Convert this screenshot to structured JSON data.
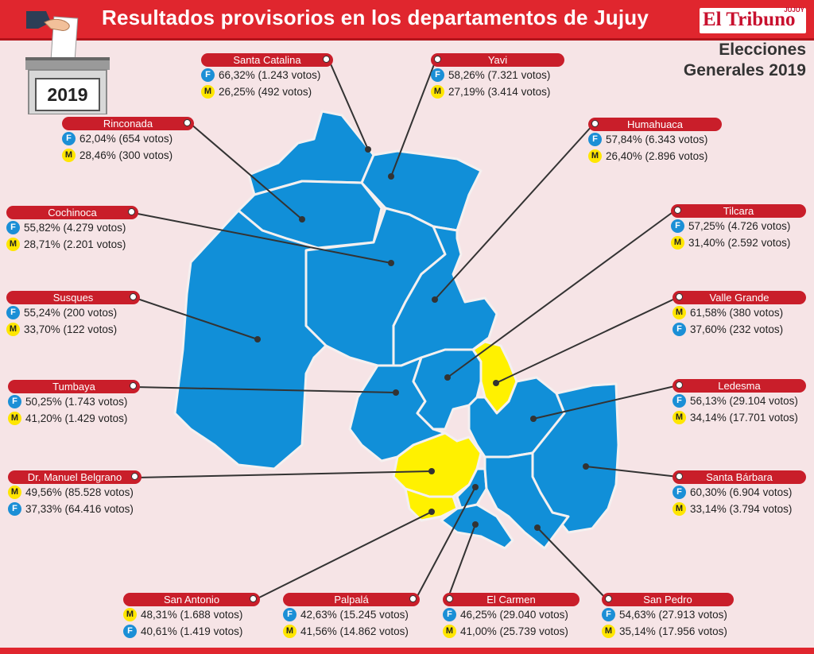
{
  "title": "Resultados provisorios en los departamentos de Jujuy",
  "logo": {
    "main": "El Tribuno",
    "sub": "JUJUY"
  },
  "election": {
    "line1": "Elecciones",
    "line2": "Generales 2019"
  },
  "year": "2019",
  "colors": {
    "F": "#1b8fd6",
    "M": "#ffe600",
    "header": "#e0262e",
    "label": "#c91e2a",
    "background": "#f6e4e6"
  },
  "departments": [
    {
      "name": "Santa Catalina",
      "rows": [
        {
          "p": "F",
          "t": "66,32% (1.243 votos)"
        },
        {
          "p": "M",
          "t": "26,25% (492 votos)"
        }
      ]
    },
    {
      "name": "Yavi",
      "rows": [
        {
          "p": "F",
          "t": "58,26% (7.321 votos)"
        },
        {
          "p": "M",
          "t": "27,19% (3.414 votos)"
        }
      ]
    },
    {
      "name": "Rinconada",
      "rows": [
        {
          "p": "F",
          "t": "62,04% (654 votos)"
        },
        {
          "p": "M",
          "t": "28,46% (300 votos)"
        }
      ]
    },
    {
      "name": "Humahuaca",
      "rows": [
        {
          "p": "F",
          "t": "57,84% (6.343 votos)"
        },
        {
          "p": "M",
          "t": "26,40% (2.896 votos)"
        }
      ]
    },
    {
      "name": "Cochinoca",
      "rows": [
        {
          "p": "F",
          "t": "55,82% (4.279 votos)"
        },
        {
          "p": "M",
          "t": "28,71% (2.201 votos)"
        }
      ]
    },
    {
      "name": "Tilcara",
      "rows": [
        {
          "p": "F",
          "t": "57,25% (4.726 votos)"
        },
        {
          "p": "M",
          "t": "31,40% (2.592 votos)"
        }
      ]
    },
    {
      "name": "Susques",
      "rows": [
        {
          "p": "F",
          "t": "55,24% (200 votos)"
        },
        {
          "p": "M",
          "t": "33,70% (122 votos)"
        }
      ]
    },
    {
      "name": "Valle Grande",
      "rows": [
        {
          "p": "M",
          "t": "61,58% (380 votos)"
        },
        {
          "p": "F",
          "t": "37,60% (232 votos)"
        }
      ]
    },
    {
      "name": "Tumbaya",
      "rows": [
        {
          "p": "F",
          "t": "50,25% (1.743 votos)"
        },
        {
          "p": "M",
          "t": "41,20% (1.429 votos)"
        }
      ]
    },
    {
      "name": "Ledesma",
      "rows": [
        {
          "p": "F",
          "t": "56,13% (29.104 votos)"
        },
        {
          "p": "M",
          "t": "34,14% (17.701 votos)"
        }
      ]
    },
    {
      "name": "Dr. Manuel Belgrano",
      "rows": [
        {
          "p": "M",
          "t": "49,56% (85.528 votos)"
        },
        {
          "p": "F",
          "t": "37,33% (64.416 votos)"
        }
      ]
    },
    {
      "name": "Santa Bárbara",
      "rows": [
        {
          "p": "F",
          "t": "60,30% (6.904 votos)"
        },
        {
          "p": "M",
          "t": "33,14% (3.794 votos)"
        }
      ]
    },
    {
      "name": "San Antonio",
      "rows": [
        {
          "p": "M",
          "t": "48,31% (1.688 votos)"
        },
        {
          "p": "F",
          "t": "40,61% (1.419 votos)"
        }
      ]
    },
    {
      "name": "Palpalá",
      "rows": [
        {
          "p": "F",
          "t": "42,63% (15.245 votos)"
        },
        {
          "p": "M",
          "t": "41,56% (14.862 votos)"
        }
      ]
    },
    {
      "name": "El Carmen",
      "rows": [
        {
          "p": "F",
          "t": "46,25% (29.040 votos)"
        },
        {
          "p": "M",
          "t": "41,00% (25.739 votos)"
        }
      ]
    },
    {
      "name": "San Pedro",
      "rows": [
        {
          "p": "F",
          "t": "54,63% (27.913 votos)"
        },
        {
          "p": "M",
          "t": "35,14% (17.956 votos)"
        }
      ]
    }
  ]
}
